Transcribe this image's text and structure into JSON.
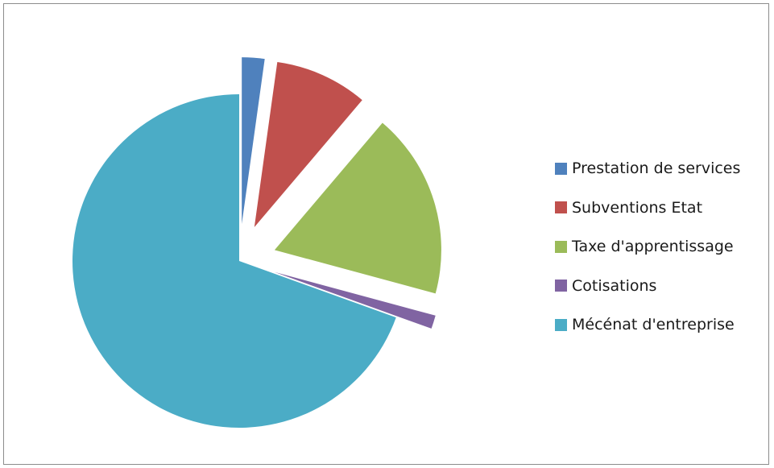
{
  "chart_data": {
    "type": "pie",
    "title": "",
    "legend_position": "right",
    "slices": [
      {
        "label": "Prestation de services",
        "value": 2.2,
        "color": "#4f81bd",
        "exploded": true
      },
      {
        "label": "Subventions Etat",
        "value": 9.0,
        "color": "#c0504d",
        "exploded": true
      },
      {
        "label": "Taxe d'apprentissage",
        "value": 18.0,
        "color": "#9bbb59",
        "exploded": true
      },
      {
        "label": "Cotisations",
        "value": 1.3,
        "color": "#8064a2",
        "exploded": true
      },
      {
        "label": "Mécénat d'entreprise",
        "value": 69.5,
        "color": "#4bacc6",
        "exploded": false
      }
    ]
  }
}
